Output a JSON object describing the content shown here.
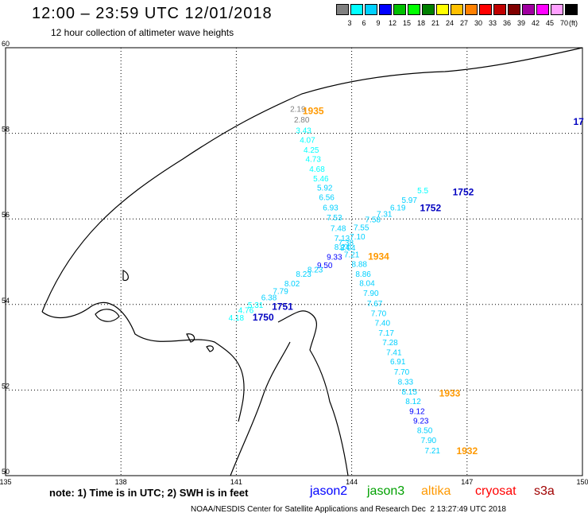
{
  "header": {
    "title": "12:00 – 23:59 UTC 12/01/2018",
    "subtitle": "12 hour collection of altimeter wave heights"
  },
  "colorbar": {
    "unit": "(ft)",
    "colors": [
      "#808080",
      "#00ffff",
      "#00d0ff",
      "#0000ff",
      "#00c000",
      "#00ff00",
      "#008000",
      "#ffff00",
      "#ffc000",
      "#ff8000",
      "#ff0000",
      "#c00000",
      "#800000",
      "#a000a0",
      "#ff00ff",
      "#ffa0ff",
      "#000000"
    ],
    "labels": [
      "3",
      "6",
      "9",
      "12",
      "15",
      "18",
      "21",
      "24",
      "27",
      "30",
      "33",
      "36",
      "39",
      "42",
      "45",
      "70"
    ]
  },
  "map": {
    "lon_ticks": [
      "135",
      "138",
      "141",
      "144",
      "147",
      "150"
    ],
    "lat_ticks": [
      "60",
      "58",
      "56",
      "54",
      "52",
      "50"
    ],
    "lon_range": [
      135,
      150
    ],
    "lat_range": [
      50,
      60
    ],
    "annotations": [
      {
        "text": "2.19",
        "lon": 142.6,
        "lat": 58.5,
        "color": "#808080"
      },
      {
        "text": "2.80",
        "lon": 142.7,
        "lat": 58.25,
        "color": "#808080"
      },
      {
        "text": "3.43",
        "lon": 142.75,
        "lat": 58.0,
        "color": "#00ffff"
      },
      {
        "text": "4.07",
        "lon": 142.85,
        "lat": 57.78,
        "color": "#00ffff"
      },
      {
        "text": "4.25",
        "lon": 142.95,
        "lat": 57.55,
        "color": "#00ffff"
      },
      {
        "text": "4.73",
        "lon": 143.0,
        "lat": 57.33,
        "color": "#00ffff"
      },
      {
        "text": "4.68",
        "lon": 143.1,
        "lat": 57.1,
        "color": "#00ffff"
      },
      {
        "text": "5.46",
        "lon": 143.2,
        "lat": 56.88,
        "color": "#00ffff"
      },
      {
        "text": "5.92",
        "lon": 143.3,
        "lat": 56.66,
        "color": "#00d0ff"
      },
      {
        "text": "6.56",
        "lon": 143.35,
        "lat": 56.44,
        "color": "#00d0ff"
      },
      {
        "text": "6.93",
        "lon": 143.45,
        "lat": 56.2,
        "color": "#00d0ff"
      },
      {
        "text": "7.53",
        "lon": 143.55,
        "lat": 55.97,
        "color": "#00d0ff"
      },
      {
        "text": "7.48",
        "lon": 143.65,
        "lat": 55.72,
        "color": "#00d0ff"
      },
      {
        "text": "7.55",
        "lon": 144.25,
        "lat": 55.73,
        "color": "#00d0ff"
      },
      {
        "text": "7.58",
        "lon": 144.55,
        "lat": 55.92,
        "color": "#00d0ff"
      },
      {
        "text": "7.31",
        "lon": 144.85,
        "lat": 56.05,
        "color": "#00d0ff"
      },
      {
        "text": "7.10",
        "lon": 144.15,
        "lat": 55.52,
        "color": "#00d0ff"
      },
      {
        "text": "7.13",
        "lon": 143.75,
        "lat": 55.48,
        "color": "#00d0ff"
      },
      {
        "text": "7.38",
        "lon": 143.85,
        "lat": 55.38,
        "color": "#00d0ff"
      },
      {
        "text": "8.24",
        "lon": 143.75,
        "lat": 55.28,
        "color": "#00d0ff"
      },
      {
        "text": "8.04",
        "lon": 143.9,
        "lat": 55.26,
        "color": "#00d0ff"
      },
      {
        "text": "9.33",
        "lon": 143.55,
        "lat": 55.05,
        "color": "#0000ff"
      },
      {
        "text": "9.50",
        "lon": 143.3,
        "lat": 54.85,
        "color": "#0000ff"
      },
      {
        "text": "7.21",
        "lon": 144.0,
        "lat": 55.1,
        "color": "#00d0ff"
      },
      {
        "text": "8.23",
        "lon": 142.75,
        "lat": 54.65,
        "color": "#00d0ff"
      },
      {
        "text": "8.23",
        "lon": 143.05,
        "lat": 54.75,
        "color": "#00d0ff"
      },
      {
        "text": "8.02",
        "lon": 142.45,
        "lat": 54.42,
        "color": "#00d0ff"
      },
      {
        "text": "7.79",
        "lon": 142.15,
        "lat": 54.25,
        "color": "#00d0ff"
      },
      {
        "text": "6.38",
        "lon": 141.85,
        "lat": 54.1,
        "color": "#00d0ff"
      },
      {
        "text": "5.31",
        "lon": 141.5,
        "lat": 53.92,
        "color": "#00ffff"
      },
      {
        "text": "4.76",
        "lon": 141.25,
        "lat": 53.8,
        "color": "#00ffff"
      },
      {
        "text": "4.18",
        "lon": 141.0,
        "lat": 53.62,
        "color": "#00ffff"
      },
      {
        "text": "8.88",
        "lon": 144.2,
        "lat": 54.88,
        "color": "#00d0ff"
      },
      {
        "text": "8.86",
        "lon": 144.3,
        "lat": 54.65,
        "color": "#00d0ff"
      },
      {
        "text": "8.04",
        "lon": 144.4,
        "lat": 54.43,
        "color": "#00d0ff"
      },
      {
        "text": "7.90",
        "lon": 144.5,
        "lat": 54.2,
        "color": "#00d0ff"
      },
      {
        "text": "7.67",
        "lon": 144.6,
        "lat": 53.96,
        "color": "#00d0ff"
      },
      {
        "text": "7.70",
        "lon": 144.7,
        "lat": 53.73,
        "color": "#00d0ff"
      },
      {
        "text": "7.40",
        "lon": 144.8,
        "lat": 53.5,
        "color": "#00d0ff"
      },
      {
        "text": "7.17",
        "lon": 144.9,
        "lat": 53.27,
        "color": "#00d0ff"
      },
      {
        "text": "7.28",
        "lon": 145.0,
        "lat": 53.05,
        "color": "#00d0ff"
      },
      {
        "text": "7.41",
        "lon": 145.1,
        "lat": 52.82,
        "color": "#00d0ff"
      },
      {
        "text": "6.91",
        "lon": 145.2,
        "lat": 52.6,
        "color": "#00d0ff"
      },
      {
        "text": "7.70",
        "lon": 145.3,
        "lat": 52.36,
        "color": "#00d0ff"
      },
      {
        "text": "8.33",
        "lon": 145.4,
        "lat": 52.13,
        "color": "#00d0ff"
      },
      {
        "text": "8.15",
        "lon": 145.5,
        "lat": 51.9,
        "color": "#00d0ff"
      },
      {
        "text": "8.12",
        "lon": 145.6,
        "lat": 51.67,
        "color": "#00d0ff"
      },
      {
        "text": "9.12",
        "lon": 145.7,
        "lat": 51.44,
        "color": "#0000ff"
      },
      {
        "text": "9.23",
        "lon": 145.8,
        "lat": 51.22,
        "color": "#0000ff"
      },
      {
        "text": "8.50",
        "lon": 145.9,
        "lat": 50.99,
        "color": "#00d0ff"
      },
      {
        "text": "7.90",
        "lon": 146.0,
        "lat": 50.76,
        "color": "#00d0ff"
      },
      {
        "text": "7.21",
        "lon": 146.1,
        "lat": 50.52,
        "color": "#00d0ff"
      },
      {
        "text": "6.19",
        "lon": 145.2,
        "lat": 56.2,
        "color": "#00d0ff"
      },
      {
        "text": "5.97",
        "lon": 145.5,
        "lat": 56.38,
        "color": "#00d0ff"
      },
      {
        "text": "5.5",
        "lon": 145.85,
        "lat": 56.6,
        "color": "#00ffff"
      }
    ],
    "pass_labels": [
      {
        "text": "1935",
        "lon": 143.0,
        "lat": 58.45,
        "color": "#ff9900"
      },
      {
        "text": "1934",
        "lon": 144.7,
        "lat": 55.05,
        "color": "#ff9900"
      },
      {
        "text": "1933",
        "lon": 146.55,
        "lat": 51.85,
        "color": "#ff9900"
      },
      {
        "text": "1932",
        "lon": 147.0,
        "lat": 50.5,
        "color": "#ff9900"
      },
      {
        "text": "1752",
        "lon": 146.9,
        "lat": 56.55,
        "color": "#0000c0"
      },
      {
        "text": "1752",
        "lon": 146.05,
        "lat": 56.18,
        "color": "#0000c0"
      },
      {
        "text": "1751",
        "lon": 142.2,
        "lat": 53.88,
        "color": "#0000c0"
      },
      {
        "text": "1750",
        "lon": 141.7,
        "lat": 53.62,
        "color": "#0000c0"
      },
      {
        "text": "17",
        "lon": 149.9,
        "lat": 58.2,
        "color": "#0000c0"
      }
    ]
  },
  "footer": {
    "note": "note: 1) Time is in UTC; 2) SWH is in feet",
    "legend": [
      {
        "text": "jason2",
        "color": "#0000ff"
      },
      {
        "text": "jason3",
        "color": "#00a000"
      },
      {
        "text": "altika",
        "color": "#ff9900"
      },
      {
        "text": "cryosat",
        "color": "#ff0000"
      },
      {
        "text": "s3a",
        "color": "#a00000"
      }
    ],
    "credit": "NOAA/NESDIS Center for Satellite Applications and Research",
    "timestamp": "Dec  2 13:27:49 UTC 2018"
  }
}
